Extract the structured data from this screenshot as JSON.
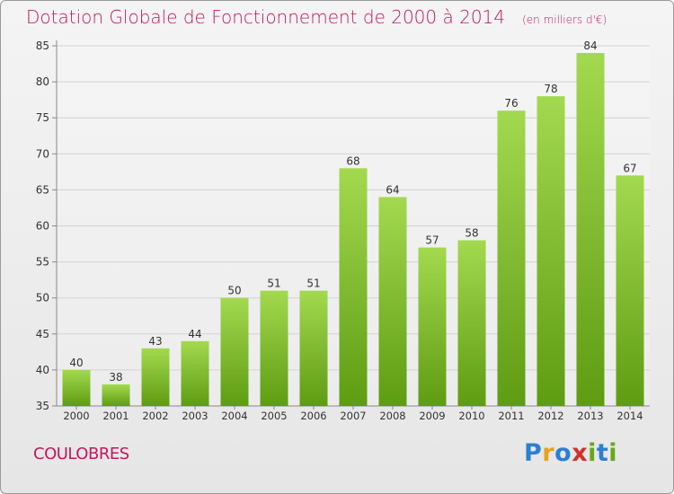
{
  "title": "Dotation Globale de Fonctionnement de 2000 à 2014",
  "subtitle": "(en milliers d'€)",
  "commune": "COULOBRES",
  "logo": {
    "letters": [
      "P",
      "r",
      "o",
      "x",
      "i",
      "t",
      "i"
    ],
    "colors": [
      "#2b7fd4",
      "#e8a21a",
      "#2b7fd4",
      "#d12f2f",
      "#6aa51c",
      "#2b7fd4",
      "#6aa51c"
    ]
  },
  "chart_data": {
    "type": "bar",
    "categories": [
      "2000",
      "2001",
      "2002",
      "2003",
      "2004",
      "2005",
      "2006",
      "2007",
      "2008",
      "2009",
      "2010",
      "2011",
      "2012",
      "2013",
      "2014"
    ],
    "values": [
      40,
      38,
      43,
      44,
      50,
      51,
      51,
      68,
      64,
      57,
      58,
      76,
      78,
      84,
      67
    ],
    "ylim": [
      35,
      85
    ],
    "yticks": [
      35,
      40,
      45,
      50,
      55,
      60,
      65,
      70,
      75,
      80,
      85
    ],
    "grid": true,
    "bar_color": "#7cbf2a"
  }
}
